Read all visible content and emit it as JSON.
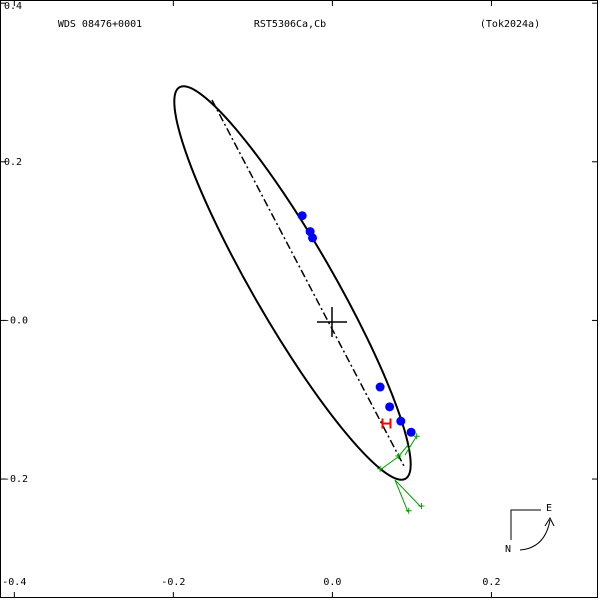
{
  "chart_data": {
    "type": "scatter",
    "title": "RST5306Ca,Cb",
    "subtitle": "WDS 08476+0001",
    "annotation": "(Tok2024a)",
    "xlim": [
      -0.418,
      0.334
    ],
    "ylim": [
      -0.35,
      0.404
    ],
    "xticks": [
      -0.4,
      -0.2,
      {
        "value": 0,
        "label": "0.0"
      },
      0.2
    ],
    "yticks": [
      0.4,
      0.2,
      {
        "value": 0,
        "label": "-0.0"
      },
      -0.2
    ],
    "compass_labels": [
      "E",
      "N"
    ],
    "series": [
      {
        "marker": "dot",
        "color": "#0000ff",
        "x": [
          -0.038,
          -0.028,
          -0.025,
          0.06,
          0.072,
          0.086,
          0.099
        ],
        "values": [
          0.132,
          0.112,
          0.104,
          -0.084,
          -0.109,
          -0.127,
          -0.141
        ]
      },
      {
        "marker": "h",
        "color": "#ff0000",
        "x": [
          0.068
        ],
        "values": [
          -0.13
        ]
      },
      {
        "marker": "plus",
        "color": "#00a000",
        "x": [
          0.06,
          0.083,
          0.106,
          0.096,
          0.112
        ],
        "values": [
          -0.187,
          -0.171,
          -0.146,
          -0.24,
          -0.234
        ]
      }
    ]
  }
}
